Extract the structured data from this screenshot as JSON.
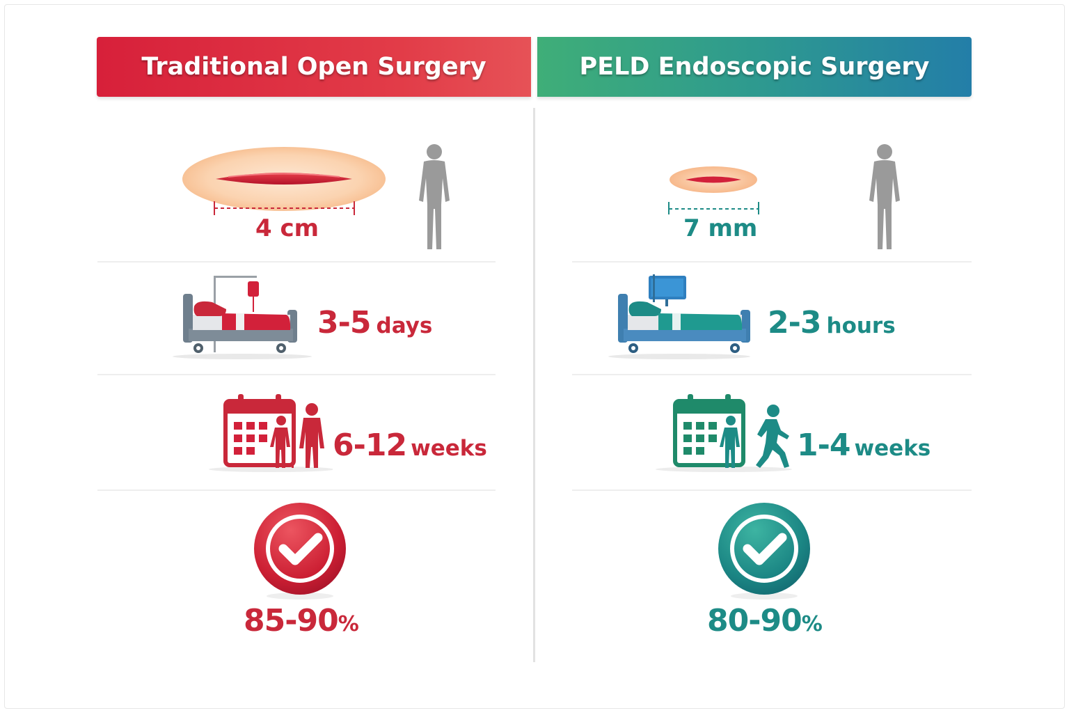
{
  "colors": {
    "traditional": "#d7203a",
    "peld": "#1d8b86",
    "figure": "#9a9a9a"
  },
  "left": {
    "title": "Traditional Open Surgery",
    "incision": {
      "value": "4 cm"
    },
    "hospital_stay": {
      "value": "3-5",
      "unit": "days"
    },
    "recovery": {
      "value": "6-12",
      "unit": "weeks"
    },
    "success": {
      "value": "85-90",
      "unit": "%"
    }
  },
  "right": {
    "title": "PELD Endoscopic Surgery",
    "incision": {
      "value": "7 mm"
    },
    "hospital_stay": {
      "value": "2-3",
      "unit": "hours"
    },
    "recovery": {
      "value": "1-4",
      "unit": "weeks"
    },
    "success": {
      "value": "80-90",
      "unit": "%"
    }
  },
  "icons": {
    "incision": "incision-icon",
    "body": "human-figure-icon",
    "bed": "hospital-bed-icon",
    "calendar": "calendar-icon",
    "walking": "walking-person-icon",
    "check": "check-circle-icon"
  }
}
